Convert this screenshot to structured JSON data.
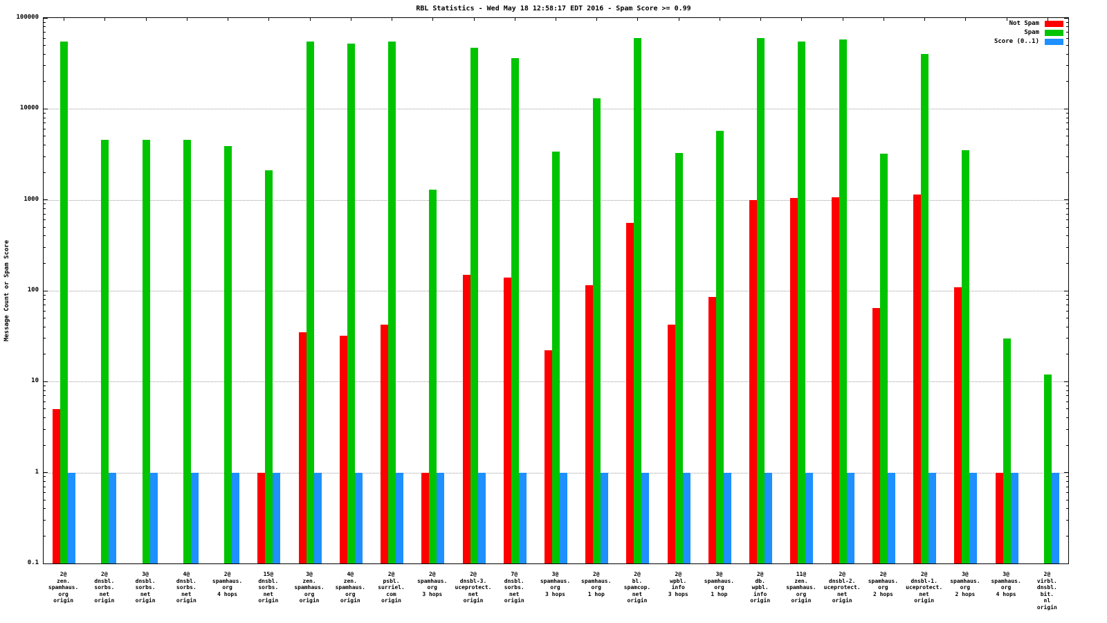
{
  "chart_data": {
    "type": "bar",
    "title": "RBL Statistics - Wed May 18 12:58:17 EDT 2016 - Spam Score >= 0.99",
    "xlabel": "",
    "ylabel": "Message Count or Spam Score",
    "y_scale": "log",
    "ylim": [
      0.1,
      100000
    ],
    "y_ticks": [
      0.1,
      1,
      10,
      100,
      1000,
      10000,
      100000
    ],
    "y_tick_labels": [
      "0.1",
      "1",
      "10",
      "100",
      "1000",
      "10000",
      "100000"
    ],
    "grid": true,
    "legend_position": "top-right",
    "categories": [
      [
        "2@",
        "zen.",
        "spamhaus.",
        "org",
        "origin"
      ],
      [
        "2@",
        "dnsbl.",
        "sorbs.",
        "net",
        "origin"
      ],
      [
        "3@",
        "dnsbl.",
        "sorbs.",
        "net",
        "origin"
      ],
      [
        "4@",
        "dnsbl.",
        "sorbs.",
        "net",
        "origin"
      ],
      [
        "2@",
        "spamhaus.",
        "org",
        "4 hops"
      ],
      [
        "15@",
        "dnsbl.",
        "sorbs.",
        "net",
        "origin"
      ],
      [
        "3@",
        "zen.",
        "spamhaus.",
        "org",
        "origin"
      ],
      [
        "4@",
        "zen.",
        "spamhaus.",
        "org",
        "origin"
      ],
      [
        "2@",
        "psbl.",
        "surriel.",
        "com",
        "origin"
      ],
      [
        "2@",
        "spamhaus.",
        "org",
        "3 hops"
      ],
      [
        "2@",
        "dnsbl-3.",
        "uceprotect.",
        "net",
        "origin"
      ],
      [
        "7@",
        "dnsbl.",
        "sorbs.",
        "net",
        "origin"
      ],
      [
        "3@",
        "spamhaus.",
        "org",
        "3 hops"
      ],
      [
        "2@",
        "spamhaus.",
        "org",
        "1 hop"
      ],
      [
        "2@",
        "bl.",
        "spamcop.",
        "net",
        "origin"
      ],
      [
        "2@",
        "wpbl.",
        "info",
        "3 hops"
      ],
      [
        "3@",
        "spamhaus.",
        "org",
        "1 hop"
      ],
      [
        "2@",
        "db.",
        "wpbl.",
        "info",
        "origin"
      ],
      [
        "11@",
        "zen.",
        "spamhaus.",
        "org",
        "origin"
      ],
      [
        "2@",
        "dnsbl-2.",
        "uceprotect.",
        "net",
        "origin"
      ],
      [
        "2@",
        "spamhaus.",
        "org",
        "2 hops"
      ],
      [
        "2@",
        "dnsbl-1.",
        "uceprotect.",
        "net",
        "origin"
      ],
      [
        "3@",
        "spamhaus.",
        "org",
        "2 hops"
      ],
      [
        "3@",
        "spamhaus.",
        "org",
        "4 hops"
      ],
      [
        "2@",
        "virbl.",
        "dnsbl.",
        "bit.",
        "nl",
        "origin"
      ]
    ],
    "series": [
      {
        "name": "Not Spam",
        "color": "#ff0000",
        "values": [
          5,
          0,
          0,
          0,
          0,
          1,
          35,
          32,
          42,
          1,
          150,
          140,
          22,
          115,
          560,
          42,
          85,
          1000,
          1040,
          1070,
          65,
          1150,
          110,
          1,
          0
        ]
      },
      {
        "name": "Spam",
        "color": "#00c400",
        "values": [
          55000,
          4600,
          4600,
          4600,
          3900,
          2100,
          55000,
          52000,
          55000,
          1300,
          47000,
          36000,
          3400,
          13000,
          60000,
          3300,
          5700,
          60000,
          55000,
          58000,
          3200,
          40000,
          3500,
          30,
          12
        ]
      },
      {
        "name": "Score (0..1)",
        "color": "#1e90ff",
        "values": [
          1,
          1,
          1,
          1,
          1,
          1,
          1,
          1,
          1,
          1,
          1,
          1,
          1,
          1,
          1,
          1,
          1,
          1,
          1,
          1,
          1,
          1,
          1,
          1,
          1
        ]
      }
    ]
  }
}
